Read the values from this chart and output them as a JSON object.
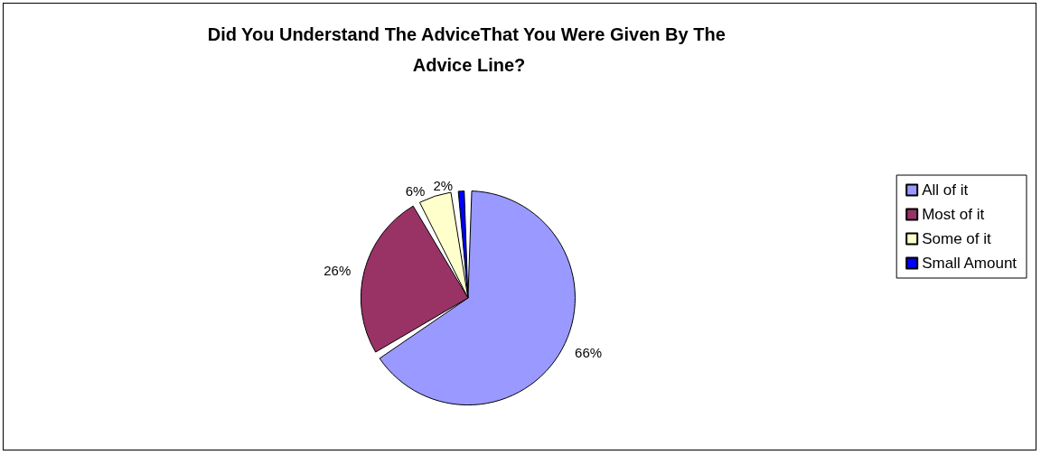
{
  "chart_data": {
    "type": "pie",
    "title": "Did You Understand The AdviceThat You Were Given By The Advice Line?",
    "categories": [
      "All of it",
      "Most of it",
      "Some of it",
      "Small Amount"
    ],
    "values": [
      66,
      26,
      6,
      2
    ],
    "value_labels": [
      "66%",
      "26%",
      "6%",
      "2%"
    ],
    "colors": [
      "#9999ff",
      "#993366",
      "#ffffcc",
      "#0000ff"
    ],
    "legend": "right"
  }
}
